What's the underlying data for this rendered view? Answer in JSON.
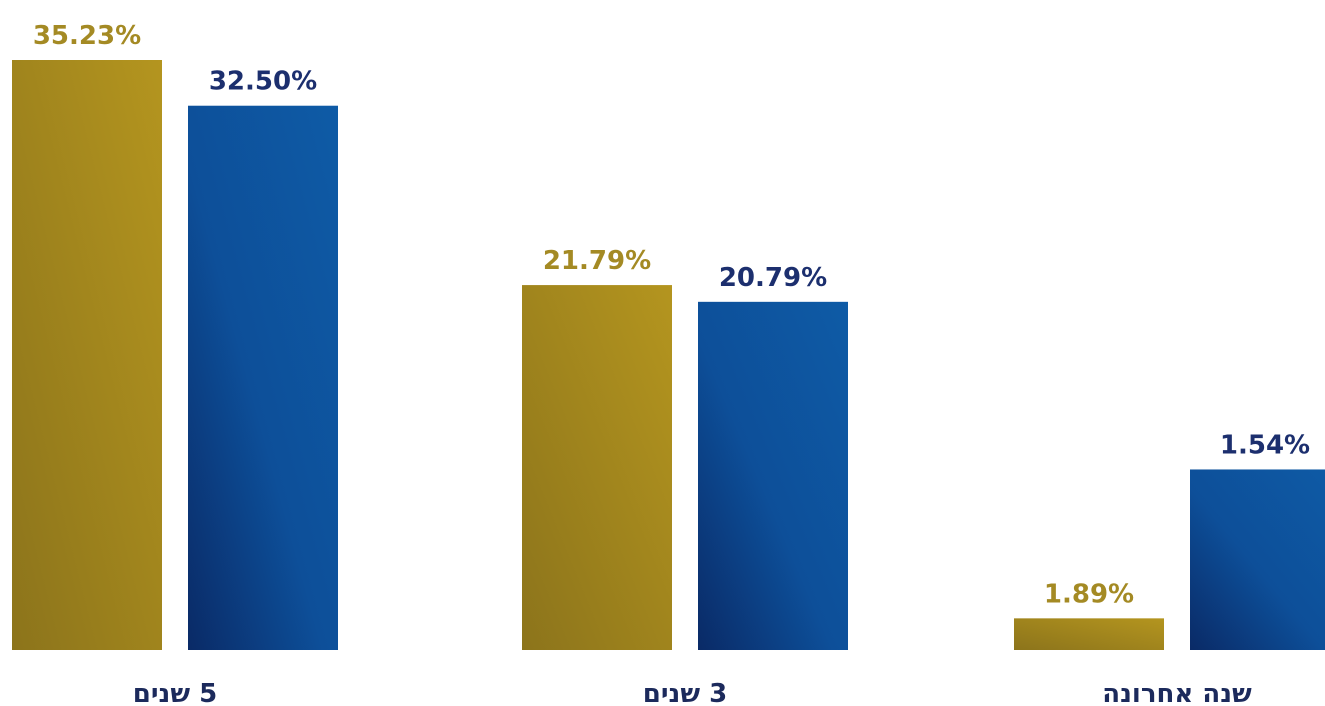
{
  "chart_data": {
    "type": "bar",
    "categories": [
      "5 שנים",
      "3 שנים",
      "שנה אחרונה"
    ],
    "series": [
      {
        "values": [
          35.23,
          21.79,
          1.89
        ],
        "labels": [
          "35.23%",
          "21.79%",
          "1.89%"
        ]
      },
      {
        "values": [
          32.5,
          20.79,
          1.54
        ],
        "labels": [
          "32.50%",
          "20.79%",
          "1.54%"
        ]
      }
    ],
    "ylim": [
      0,
      35.23
    ],
    "grid": false,
    "colors": {
      "series_0": "#b4951f",
      "series_0_dark": "#8c741b",
      "series_0_text": "#a48a24",
      "series_1": "#0e5ba6",
      "series_1_dark": "#0a2a66",
      "series_1_text": "#1c2f6e",
      "category_text": "#1c2a5c"
    }
  }
}
